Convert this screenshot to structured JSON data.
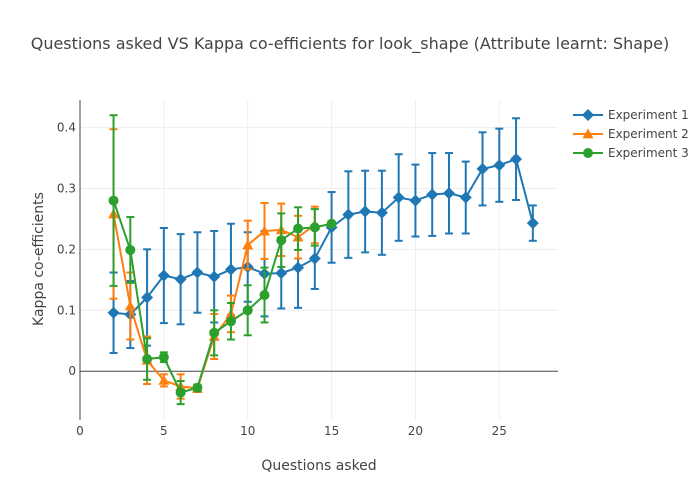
{
  "chart_data": {
    "type": "line",
    "title": "Questions asked VS Kappa co-efficients for look_shape (Attribute learnt: Shape)",
    "xlabel": "Questions asked",
    "ylabel": "Kappa co-efficients",
    "xlim": [
      0,
      28.5
    ],
    "ylim": [
      -0.08,
      0.445
    ],
    "x_ticks": [
      0,
      5,
      10,
      15,
      20,
      25
    ],
    "x_tick_labels": [
      "0",
      "5",
      "10",
      "15",
      "20",
      "25"
    ],
    "y_ticks": [
      0,
      0.1,
      0.2,
      0.3,
      0.4
    ],
    "y_tick_labels": [
      "0",
      "0.1",
      "0.2",
      "0.3",
      "0.4"
    ],
    "grid": true,
    "legend_position": "top-right",
    "series": [
      {
        "name": "Experiment 1",
        "color": "#1f77b4",
        "marker": "diamond",
        "x": [
          2,
          3,
          4,
          5,
          6,
          7,
          8,
          9,
          10,
          11,
          12,
          13,
          14,
          15,
          16,
          17,
          18,
          19,
          20,
          21,
          22,
          23,
          24,
          25,
          26,
          27
        ],
        "y": [
          0.096,
          0.093,
          0.121,
          0.157,
          0.151,
          0.162,
          0.155,
          0.167,
          0.171,
          0.16,
          0.161,
          0.17,
          0.185,
          0.236,
          0.257,
          0.262,
          0.26,
          0.285,
          0.28,
          0.29,
          0.292,
          0.285,
          0.332,
          0.338,
          0.348,
          0.243
        ],
        "err": [
          0.066,
          0.055,
          0.079,
          0.078,
          0.074,
          0.066,
          0.075,
          0.075,
          0.057,
          0.07,
          0.058,
          0.066,
          0.05,
          0.058,
          0.071,
          0.067,
          0.069,
          0.071,
          0.059,
          0.068,
          0.066,
          0.059,
          0.06,
          0.06,
          0.067,
          0.029
        ]
      },
      {
        "name": "Experiment 2",
        "color": "#ff7f0e",
        "marker": "triangle-up",
        "x": [
          2,
          3,
          4,
          5,
          6,
          7,
          8,
          9,
          10,
          11,
          12,
          13,
          14
        ],
        "y": [
          0.258,
          0.107,
          0.018,
          -0.015,
          -0.025,
          -0.028,
          0.057,
          0.094,
          0.207,
          0.23,
          0.232,
          0.22,
          0.24
        ],
        "err": [
          0.139,
          0.055,
          0.039,
          0.01,
          0.02,
          0.006,
          0.037,
          0.03,
          0.04,
          0.046,
          0.043,
          0.035,
          0.03
        ]
      },
      {
        "name": "Experiment 3",
        "color": "#2ca02c",
        "marker": "circle",
        "x": [
          2,
          3,
          4,
          5,
          6,
          7,
          8,
          9,
          10,
          11,
          12,
          13,
          14,
          15
        ],
        "y": [
          0.28,
          0.199,
          0.02,
          0.023,
          -0.035,
          -0.027,
          0.063,
          0.082,
          0.1,
          0.125,
          0.215,
          0.234,
          0.236,
          0.242
        ],
        "err": [
          0.14,
          0.054,
          0.034,
          0.008,
          0.019,
          0.005,
          0.037,
          0.03,
          0.041,
          0.045,
          0.044,
          0.035,
          0.03,
          0.0
        ]
      }
    ]
  }
}
